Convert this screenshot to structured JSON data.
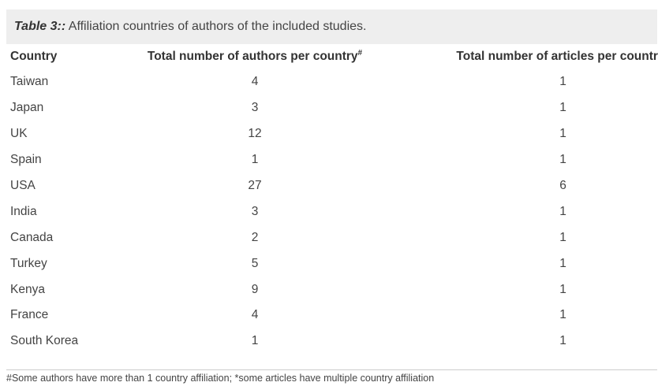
{
  "caption": {
    "label": "Table 3::",
    "text": " Affiliation countries of authors of the included studies."
  },
  "table": {
    "headers": {
      "country": "Country",
      "authors": "Total number of authors per country",
      "authors_mark": "#",
      "articles": "Total number of articles per country*"
    },
    "rows": [
      {
        "country": "Taiwan",
        "authors": "4",
        "articles": "1"
      },
      {
        "country": "Japan",
        "authors": "3",
        "articles": "1"
      },
      {
        "country": "UK",
        "authors": "12",
        "articles": "1"
      },
      {
        "country": "Spain",
        "authors": "1",
        "articles": "1"
      },
      {
        "country": "USA",
        "authors": "27",
        "articles": "6"
      },
      {
        "country": "India",
        "authors": "3",
        "articles": "1"
      },
      {
        "country": "Canada",
        "authors": "2",
        "articles": "1"
      },
      {
        "country": "Turkey",
        "authors": "5",
        "articles": "1"
      },
      {
        "country": "Kenya",
        "authors": "9",
        "articles": "1"
      },
      {
        "country": "France",
        "authors": "4",
        "articles": "1"
      },
      {
        "country": "South Korea",
        "authors": "1",
        "articles": "1"
      }
    ]
  },
  "footnote": "#Some authors have more than 1 country affiliation; *some articles have multiple country affiliation"
}
